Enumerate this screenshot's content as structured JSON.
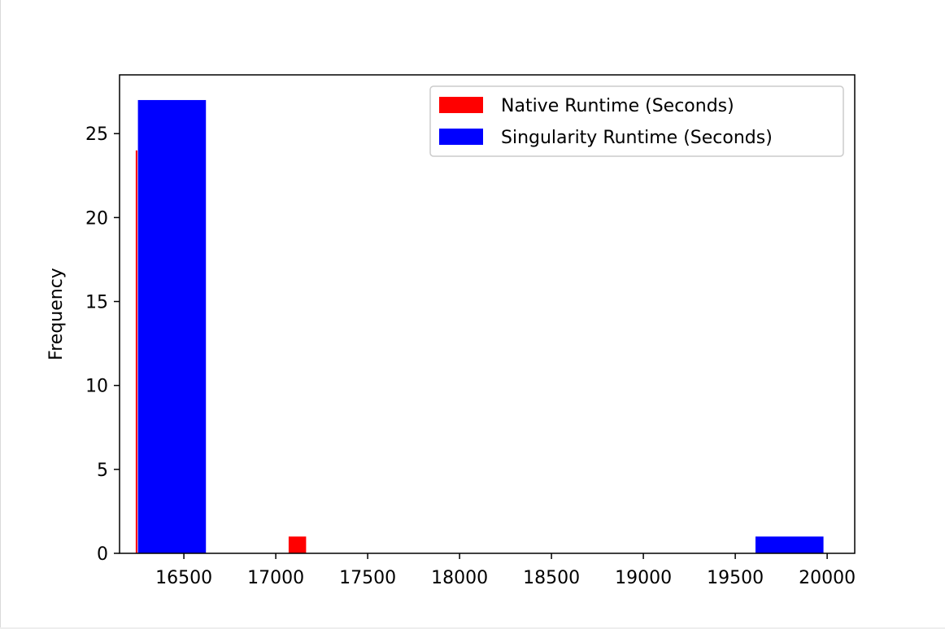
{
  "chart_data": {
    "type": "bar",
    "title": "",
    "xlabel": "",
    "ylabel": "Frequency",
    "xlim": [
      16150,
      20150
    ],
    "ylim": [
      0,
      28.5
    ],
    "x_ticks": [
      16500,
      17000,
      17500,
      18000,
      18500,
      19000,
      19500,
      20000
    ],
    "y_ticks": [
      0,
      5,
      10,
      15,
      20,
      25
    ],
    "grid": false,
    "legend_position": "upper right",
    "series": [
      {
        "name": "Native Runtime (Seconds)",
        "color": "#ff0000",
        "bins": [
          {
            "x0": 16238,
            "x1": 16247,
            "value": 24
          },
          {
            "x0": 17070,
            "x1": 17165,
            "value": 1
          }
        ]
      },
      {
        "name": "Singularity Runtime (Seconds)",
        "color": "#0000ff",
        "bins": [
          {
            "x0": 16250,
            "x1": 16620,
            "value": 27
          },
          {
            "x0": 19610,
            "x1": 19980,
            "value": 1
          }
        ]
      }
    ]
  }
}
